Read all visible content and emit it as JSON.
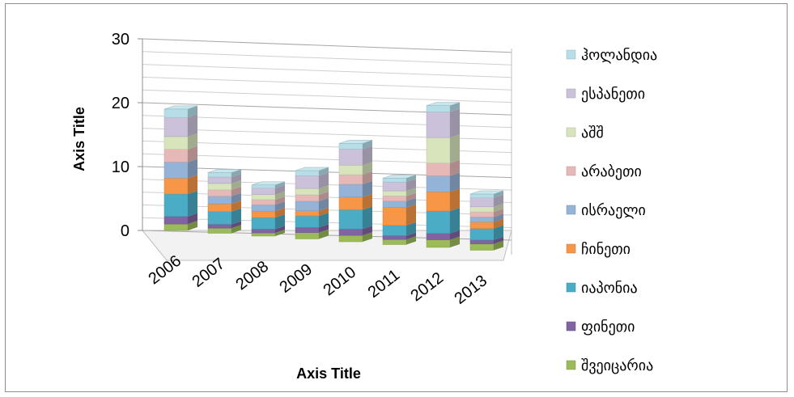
{
  "chart_data": {
    "type": "bar",
    "stacked": true,
    "three_d": true,
    "categories": [
      "2006",
      "2007",
      "2008",
      "2009",
      "2010",
      "2011",
      "2012",
      "2013"
    ],
    "xlabel": "Axis Title",
    "ylabel": "Axis Title",
    "ylim": [
      0,
      30
    ],
    "yticks": [
      "0",
      "10",
      "20",
      "30"
    ],
    "grid": true,
    "legend_position": "right",
    "series": [
      {
        "name": "შვეიცარია",
        "color": "#9bbb59",
        "values": [
          1.0,
          0.8,
          0.5,
          1.0,
          1.0,
          0.8,
          1.2,
          1.0
        ]
      },
      {
        "name": "ფინეთი",
        "color": "#8064a2",
        "values": [
          1.2,
          0.6,
          0.6,
          0.8,
          1.0,
          0.6,
          1.0,
          0.6
        ]
      },
      {
        "name": "იაპონია",
        "color": "#4bacc6",
        "values": [
          3.5,
          2.0,
          1.8,
          1.8,
          3.0,
          1.6,
          3.5,
          1.8
        ]
      },
      {
        "name": "ჩინეთი",
        "color": "#f79646",
        "values": [
          2.5,
          1.2,
          1.0,
          0.8,
          2.0,
          2.8,
          3.0,
          1.0
        ]
      },
      {
        "name": "ისრაელი",
        "color": "#95b3d7",
        "values": [
          2.5,
          1.2,
          1.0,
          1.5,
          2.0,
          1.0,
          2.5,
          0.8
        ]
      },
      {
        "name": "არაბეთი",
        "color": "#e6b9b8",
        "values": [
          2.0,
          1.0,
          0.8,
          1.0,
          1.5,
          0.8,
          2.0,
          0.8
        ]
      },
      {
        "name": "აშშ",
        "color": "#d7e4bc",
        "values": [
          2.0,
          1.0,
          0.8,
          1.0,
          1.5,
          0.8,
          4.0,
          0.8
        ]
      },
      {
        "name": "ესპანეთი",
        "color": "#ccc1da",
        "values": [
          3.0,
          1.0,
          1.0,
          2.0,
          2.5,
          1.4,
          4.0,
          1.4
        ]
      },
      {
        "name": "ჰოლანდია",
        "color": "#b7dee8",
        "values": [
          1.3,
          0.7,
          0.5,
          0.8,
          0.9,
          0.6,
          1.0,
          0.6
        ]
      }
    ]
  }
}
